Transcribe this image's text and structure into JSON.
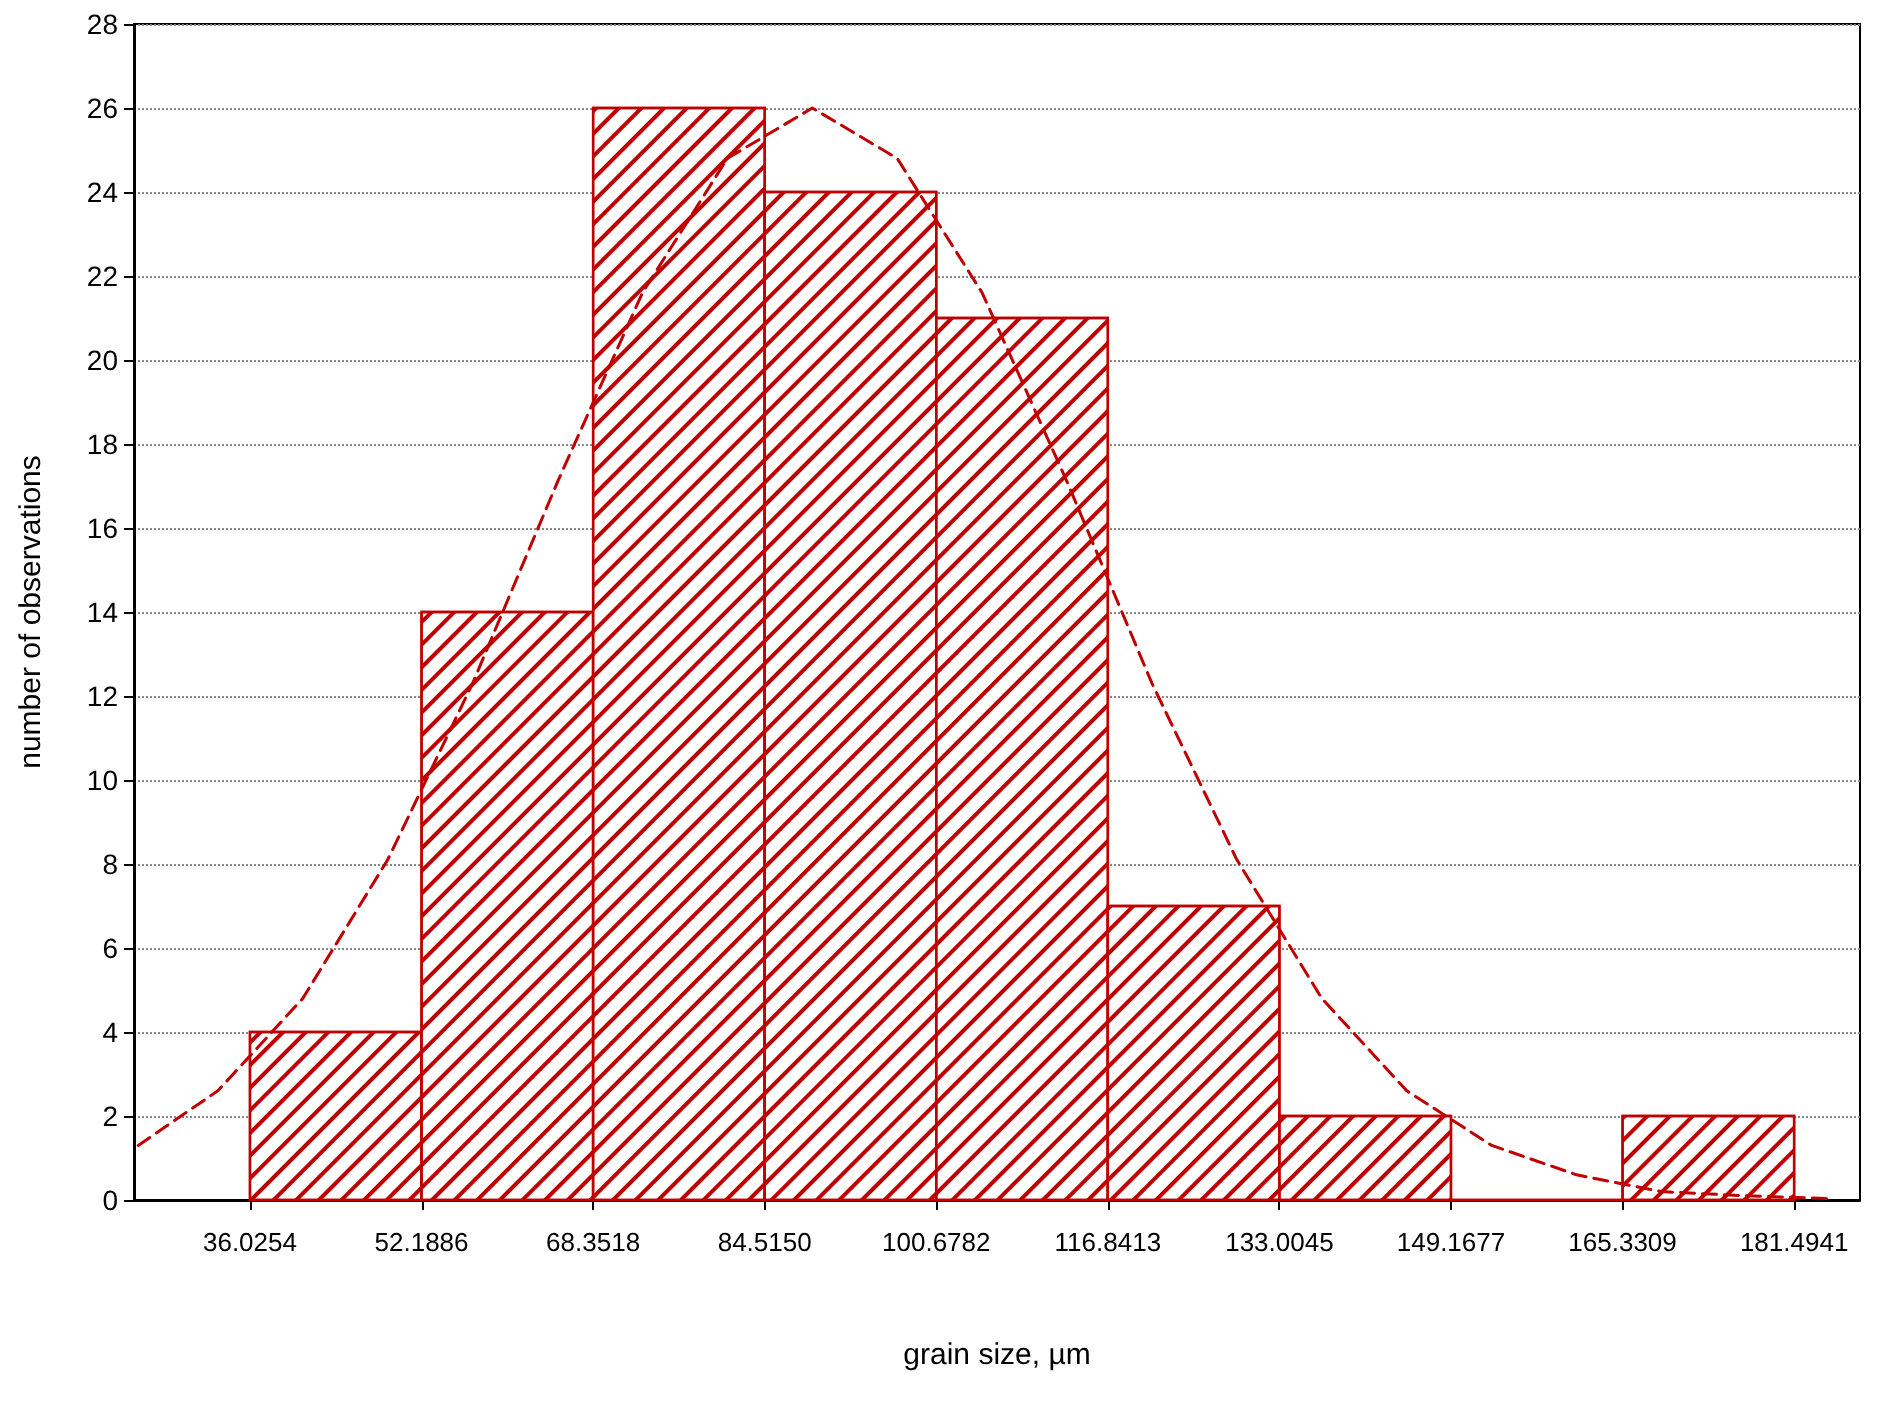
{
  "chart_data": {
    "type": "histogram",
    "xlabel": "grain size, µm",
    "ylabel": "number of observations",
    "bins": [
      36.0254,
      52.1886,
      68.3518,
      84.515,
      100.6782,
      116.8413,
      133.0045,
      149.1677,
      165.3309,
      181.4941
    ],
    "values": [
      4,
      14,
      26,
      24,
      21,
      7,
      2,
      0,
      2
    ],
    "color": "#c00000",
    "series": [
      {
        "type": "line",
        "color": "#c00000",
        "line_style": "dashed",
        "marker": "none",
        "x": [
          25.5,
          33,
          41,
          49,
          57,
          65,
          73,
          81,
          89,
          97,
          105,
          113,
          121,
          129,
          137,
          145,
          153,
          161,
          169,
          177,
          185
        ],
        "values": [
          1.3,
          2.6,
          4.8,
          8.1,
          12.3,
          17.1,
          21.6,
          24.8,
          26,
          24.8,
          21.6,
          17.1,
          12.3,
          8.1,
          4.8,
          2.6,
          1.3,
          0.6,
          0.2,
          0.1,
          0.03
        ]
      }
    ],
    "xlim": [
      25.1,
      187.7
    ],
    "xticks": [
      36.0254,
      52.1886,
      68.3518,
      {
        "value": 84.515,
        "label": "84.5150"
      },
      100.6782,
      116.8413,
      133.0045,
      149.1677,
      165.3309,
      181.4941
    ],
    "ylim": [
      0,
      28
    ],
    "yticks": [
      0,
      2,
      4,
      6,
      8,
      10,
      12,
      14,
      16,
      18,
      20,
      22,
      24,
      26,
      28
    ],
    "grid": "y"
  }
}
